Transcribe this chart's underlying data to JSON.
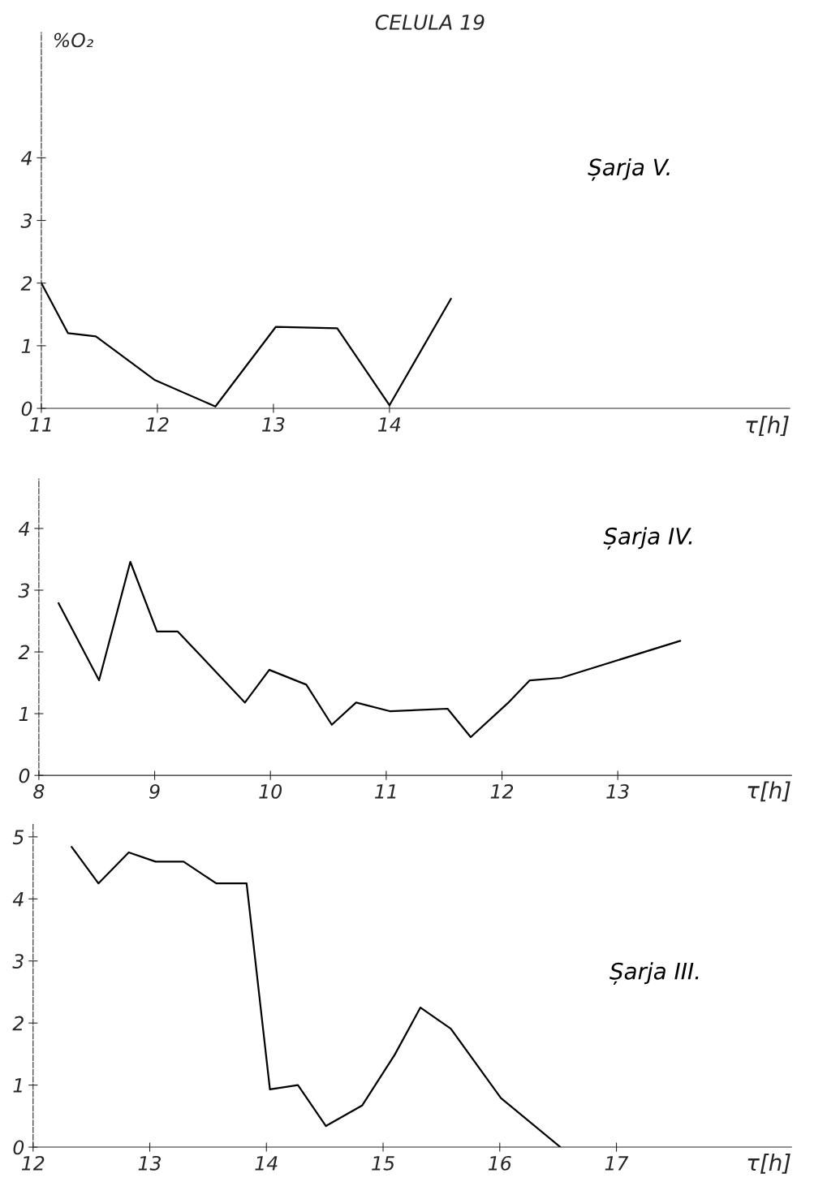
{
  "chart_data": [
    {
      "type": "line",
      "title": "CELULA 19",
      "ylabel": "%O₂",
      "xlabel": "τ[h]",
      "xlim": [
        11,
        17.45
      ],
      "ylim": [
        0,
        6
      ],
      "xticks": [
        11,
        12,
        13,
        14
      ],
      "yticks": [
        0,
        1,
        2,
        3,
        4
      ],
      "grid": false,
      "legend": false,
      "marker": "none",
      "line_style": "solid",
      "series": [
        {
          "name": "Șarja V.",
          "color": "#000000",
          "x": [
            11.0,
            11.23,
            11.47,
            11.98,
            12.5,
            13.02,
            13.55,
            14.0,
            14.53
          ],
          "values": [
            2.0,
            1.2,
            1.15,
            0.45,
            0.03,
            1.3,
            1.28,
            0.05,
            1.75
          ]
        }
      ]
    },
    {
      "type": "line",
      "xlabel": "τ[h]",
      "xlim": [
        8,
        14.5
      ],
      "ylim": [
        0,
        4.8
      ],
      "xticks": [
        8,
        9,
        10,
        11,
        12,
        13
      ],
      "yticks": [
        0,
        1,
        2,
        3,
        4
      ],
      "grid": false,
      "legend": false,
      "marker": "none",
      "line_style": "solid",
      "series": [
        {
          "name": "Șarja IV.",
          "color": "#000000",
          "x": [
            8.17,
            8.52,
            8.79,
            9.02,
            9.2,
            9.78,
            9.99,
            10.31,
            10.53,
            10.74,
            11.03,
            11.53,
            11.73,
            12.05,
            12.24,
            12.51,
            13.54
          ],
          "values": [
            2.79,
            1.54,
            3.46,
            2.33,
            2.33,
            1.18,
            1.71,
            1.47,
            0.82,
            1.18,
            1.04,
            1.08,
            0.62,
            1.17,
            1.54,
            1.58,
            2.18
          ]
        }
      ]
    },
    {
      "type": "line",
      "xlabel": "τ[h]",
      "xlim": [
        12,
        18.5
      ],
      "ylim": [
        0,
        5.2
      ],
      "xticks": [
        12,
        13,
        14,
        15,
        16,
        17
      ],
      "yticks": [
        0,
        1,
        2,
        3,
        4,
        5
      ],
      "grid": false,
      "legend": false,
      "marker": "none",
      "line_style": "solid",
      "series": [
        {
          "name": "Șarja III.",
          "color": "#000000",
          "x": [
            12.33,
            12.56,
            12.82,
            13.05,
            13.29,
            13.57,
            13.83,
            14.03,
            14.27,
            14.51,
            14.82,
            15.1,
            15.32,
            15.58,
            16.01,
            16.52
          ],
          "values": [
            4.84,
            4.25,
            4.75,
            4.6,
            4.6,
            4.25,
            4.25,
            0.93,
            1.0,
            0.34,
            0.67,
            1.49,
            2.25,
            1.91,
            0.79,
            0.0
          ]
        }
      ]
    }
  ]
}
